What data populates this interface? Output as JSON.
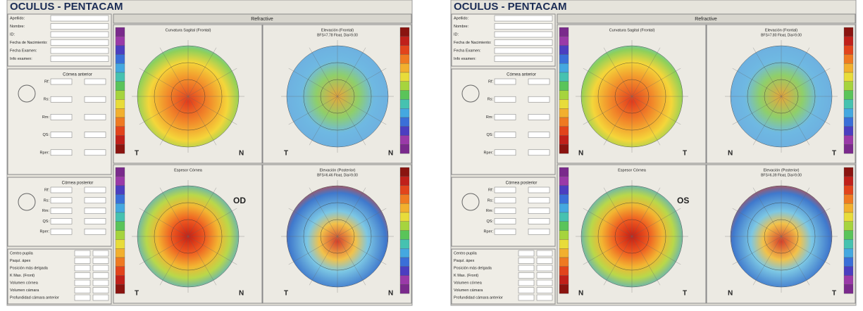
{
  "panels": [
    {
      "title": "OCULUS - PENTACAM",
      "header": "Refractive",
      "eye": "OD",
      "patient_fields": [
        "Apellido:",
        "Nombre:",
        "ID:",
        "Fecha de Nacimiento:",
        "Fecha Examen:",
        "Info examen:"
      ],
      "anterior": {
        "title": "Córnea anterior",
        "fields": [
          "Rf:",
          "Rs:",
          "Rm:",
          "QS:",
          "Rper:"
        ]
      },
      "posterior": {
        "title": "Córnea posterior",
        "fields": [
          "Rf:",
          "Rs:",
          "Rm:",
          "QS:",
          "Rper:"
        ]
      },
      "measures": [
        "Centro pupila",
        "Paquí. ápex",
        "Posición más delgada",
        "K Max. (Front)",
        "Volumen córnea",
        "Volumen cámara",
        "Profundidad cámara anterior"
      ],
      "maps": [
        {
          "title": "Curvatura Sagital (Frontal)",
          "left": "T",
          "right": "N"
        },
        {
          "title": "Elevación (Frontal)",
          "subtitle": "BFS=7.78 Float, Dia=9.00",
          "left": "T",
          "right": "N"
        },
        {
          "title": "Espesor Córnea",
          "left": "T",
          "right": "N"
        },
        {
          "title": "Elevación (Posterior)",
          "subtitle": "BFS=6.46 Float, Dia=9.00",
          "left": "T",
          "right": "N"
        }
      ]
    },
    {
      "title": "OCULUS - PENTACAM",
      "header": "Refractive",
      "eye": "OS",
      "patient_fields": [
        "Apellido:",
        "Nombre:",
        "ID:",
        "Fecha de Nacimiento:",
        "Fecha Examen:",
        "Info examen:"
      ],
      "anterior": {
        "title": "Córnea anterior",
        "fields": [
          "Rf:",
          "Rs:",
          "Rm:",
          "QS:",
          "Rper:"
        ]
      },
      "posterior": {
        "title": "Córnea posterior",
        "fields": [
          "Rf:",
          "Rs:",
          "Rm:",
          "QS:",
          "Rper:"
        ]
      },
      "measures": [
        "Centro pupila",
        "Paquí. ápex",
        "Posición más delgada",
        "K Max. (Front)",
        "Volumen córnea",
        "Volumen cámara",
        "Profundidad cámara anterior"
      ],
      "maps": [
        {
          "title": "Curvatura Sagital (Frontal)",
          "left": "N",
          "right": "T"
        },
        {
          "title": "Elevación (Frontal)",
          "subtitle": "BFS=7.80 Float, Dia=9.00",
          "left": "N",
          "right": "T"
        },
        {
          "title": "Espesor Córnea",
          "left": "N",
          "right": "T"
        },
        {
          "title": "Elevación (Posterior)",
          "subtitle": "BFS=6.39 Float, Dia=9.00",
          "left": "N",
          "right": "T"
        }
      ]
    }
  ]
}
